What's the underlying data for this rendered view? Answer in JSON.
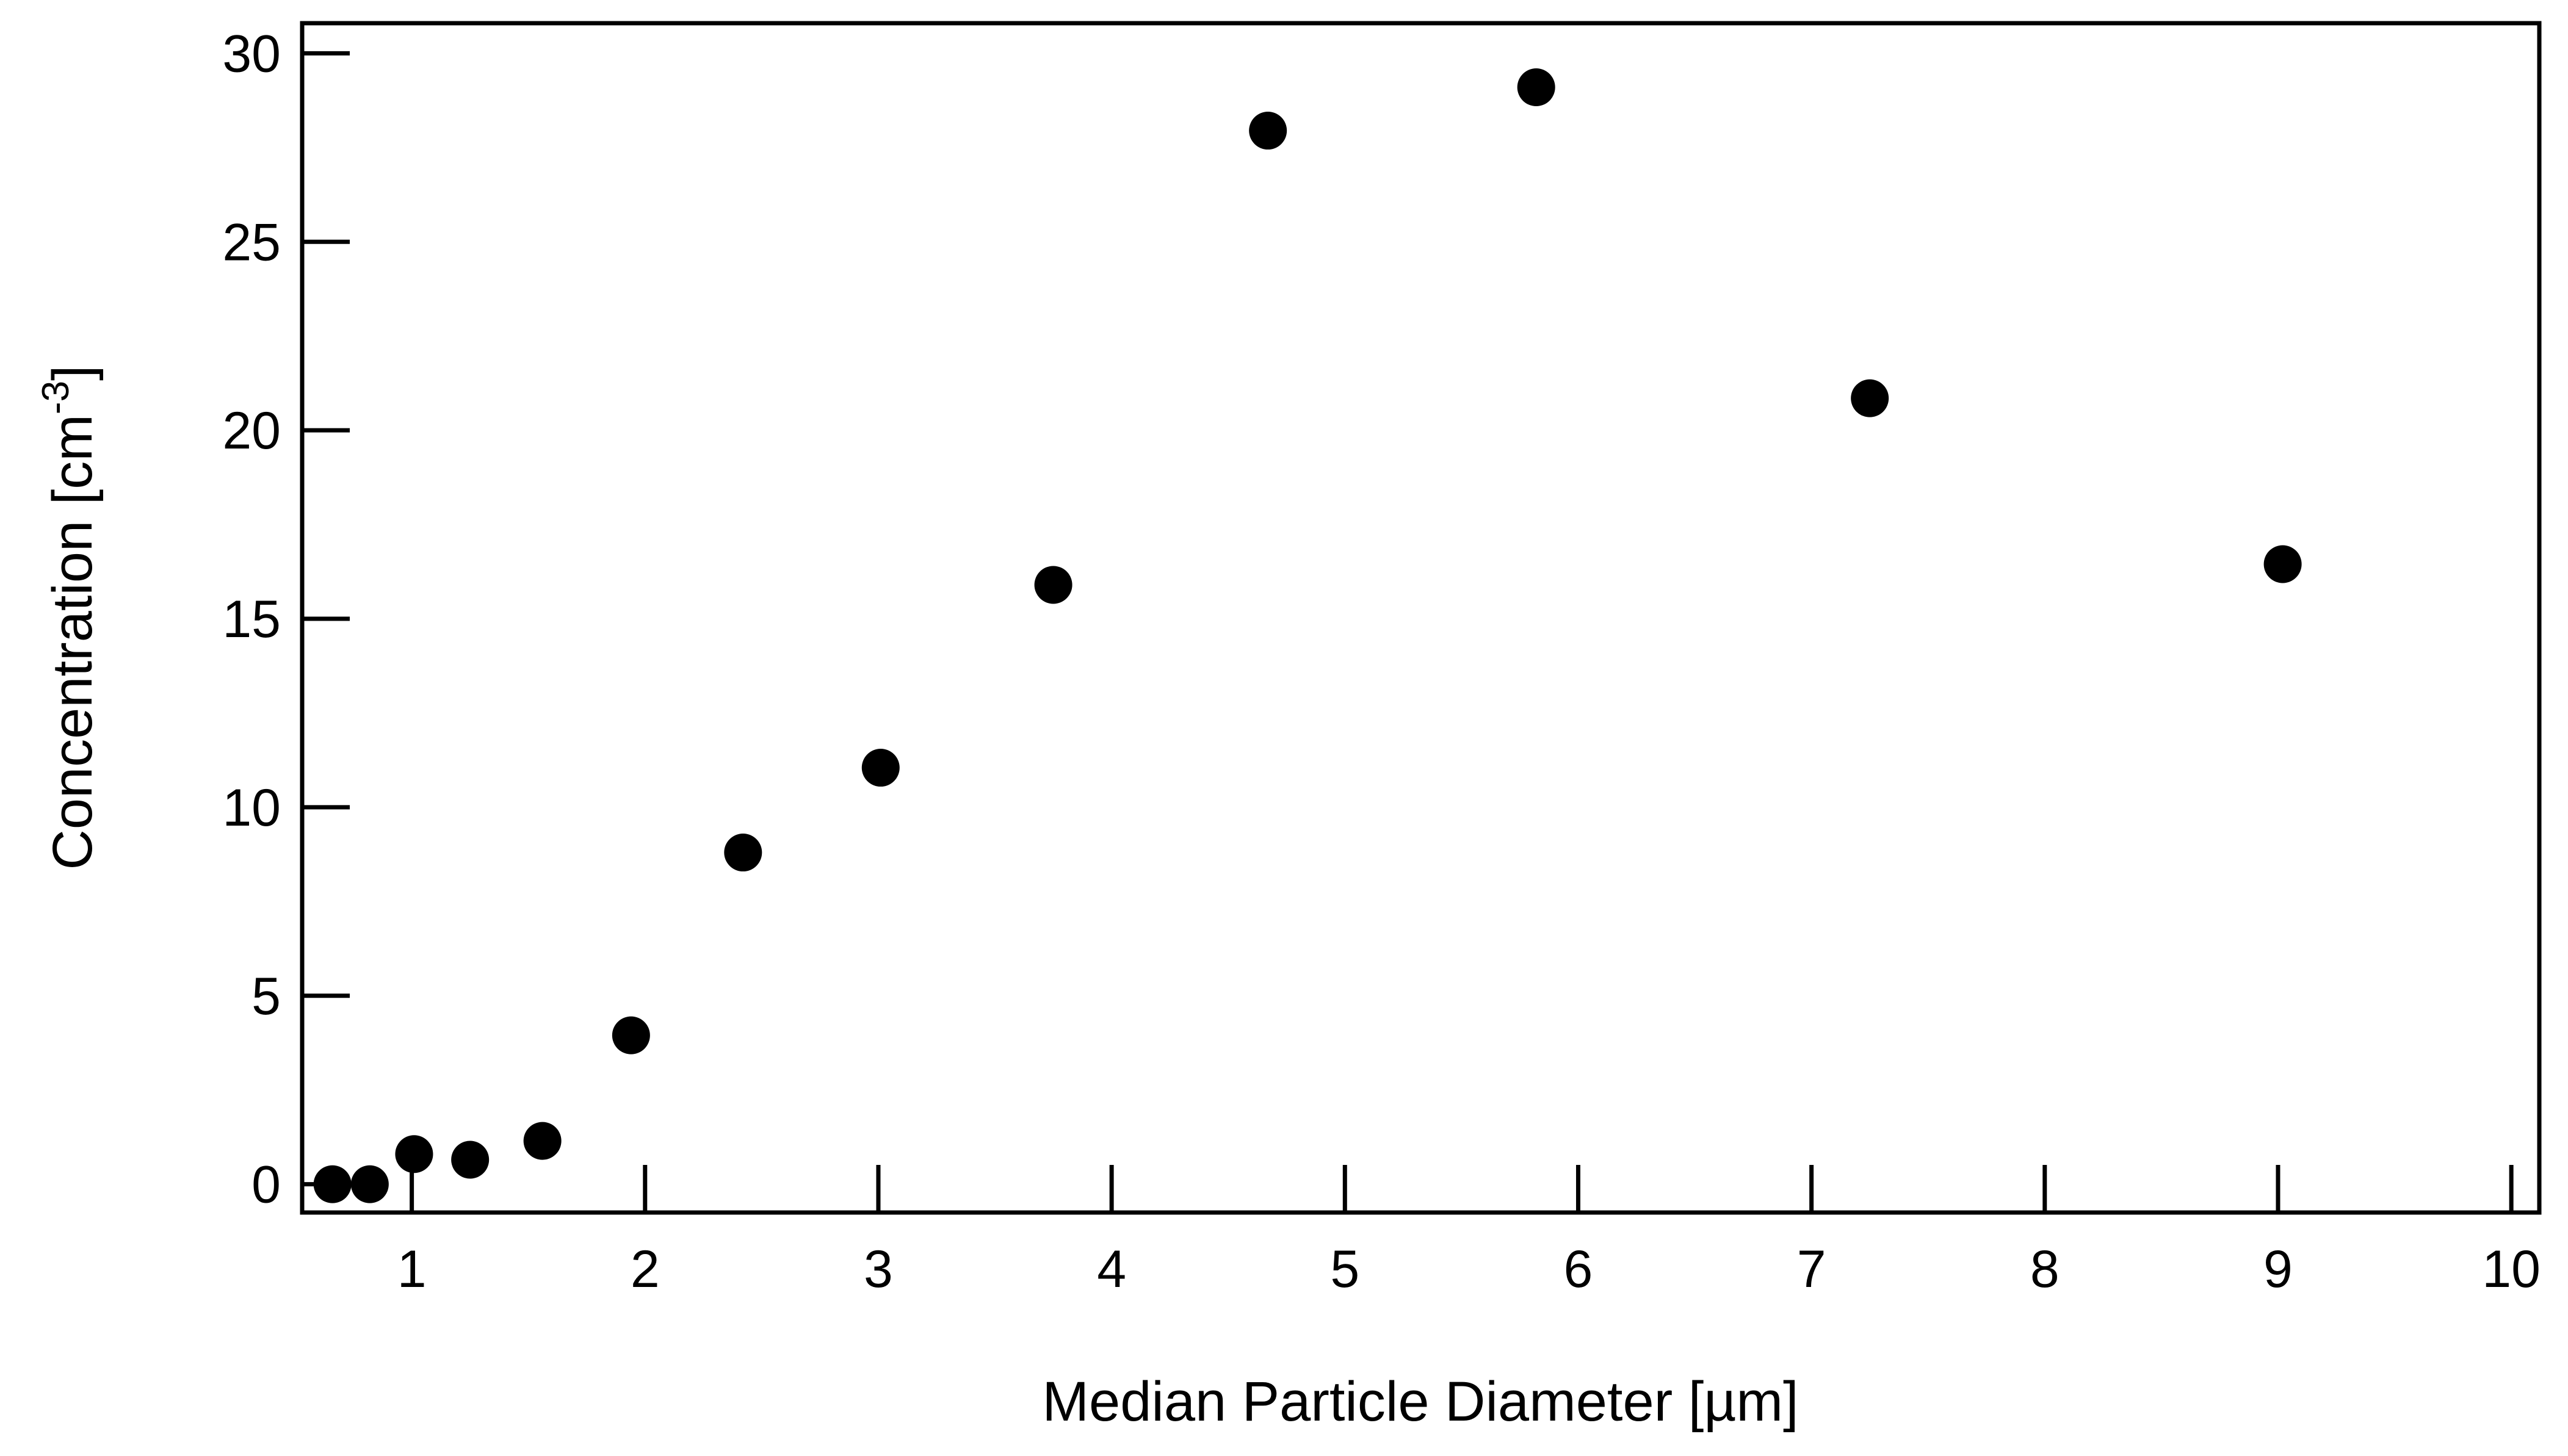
{
  "chart_data": {
    "type": "scatter",
    "title": "",
    "xlabel": "Median Particle Diameter [µm]",
    "ylabel_text": "Concentration [cm",
    "ylabel_superscript": "-3",
    "ylabel_suffix": "]",
    "xlim": [
      0.53,
      10.12
    ],
    "ylim": [
      -0.75,
      30.8
    ],
    "xticks": [
      1,
      2,
      3,
      4,
      5,
      6,
      7,
      8,
      9,
      10
    ],
    "yticks": [
      0,
      5,
      10,
      15,
      20,
      25,
      30
    ],
    "grid": false,
    "marker_color": "#000000",
    "series": [
      {
        "x": [
          0.66,
          0.82,
          1.01,
          1.25,
          1.56,
          1.94,
          2.42,
          3.01,
          3.75,
          4.67,
          5.82,
          7.25,
          9.02
        ],
        "y": [
          0.0,
          0.0,
          0.8,
          0.65,
          1.15,
          3.95,
          8.8,
          11.05,
          15.9,
          27.95,
          29.1,
          20.85,
          16.45
        ]
      }
    ]
  }
}
